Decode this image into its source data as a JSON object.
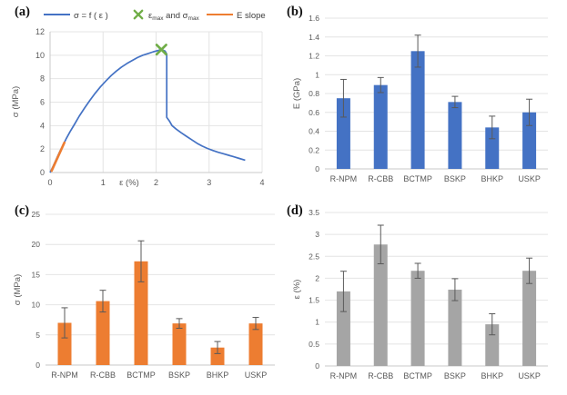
{
  "figure": {
    "background": "#ffffff",
    "panels": {
      "a": {
        "label": "(a)"
      },
      "b": {
        "label": "(b)"
      },
      "c": {
        "label": "(c)"
      },
      "d": {
        "label": "(d)"
      }
    }
  },
  "colors": {
    "blue": "#4472C4",
    "orange": "#ED7D31",
    "green": "#70AD47",
    "gray_bar": "#A5A5A5",
    "error_bar": "#595959",
    "gridline": "#E4E4E4",
    "axis_line": "#C9C9C9",
    "tick_text": "#595959",
    "legend_text": "#404040"
  },
  "chart_data": [
    {
      "id": "a",
      "type": "line",
      "title": "",
      "xlabel": "ε (%)",
      "ylabel": "σ (MPa)",
      "xlim": [
        0,
        4
      ],
      "ylim": [
        0,
        12
      ],
      "xticks": [
        "0",
        "1",
        "2",
        "3",
        "4"
      ],
      "yticks": [
        "0",
        "2",
        "4",
        "6",
        "8",
        "10",
        "12"
      ],
      "grid": "both",
      "legend_position": "top",
      "series": [
        {
          "name": "σ = f ( ε )",
          "type": "line",
          "color": "#4472C4",
          "points": [
            [
              0,
              0
            ],
            [
              0.06,
              0.55
            ],
            [
              0.12,
              1.15
            ],
            [
              0.18,
              1.75
            ],
            [
              0.24,
              2.3
            ],
            [
              0.3,
              2.85
            ],
            [
              0.38,
              3.5
            ],
            [
              0.46,
              4.1
            ],
            [
              0.55,
              4.8
            ],
            [
              0.65,
              5.5
            ],
            [
              0.75,
              6.15
            ],
            [
              0.85,
              6.75
            ],
            [
              0.95,
              7.3
            ],
            [
              1.05,
              7.8
            ],
            [
              1.15,
              8.25
            ],
            [
              1.25,
              8.65
            ],
            [
              1.35,
              9.0
            ],
            [
              1.45,
              9.3
            ],
            [
              1.55,
              9.55
            ],
            [
              1.65,
              9.8
            ],
            [
              1.75,
              10.0
            ],
            [
              1.85,
              10.15
            ],
            [
              1.95,
              10.3
            ],
            [
              2.05,
              10.42
            ],
            [
              2.12,
              10.45
            ],
            [
              2.17,
              10.35
            ],
            [
              2.2,
              10.1
            ],
            [
              2.2,
              4.7
            ],
            [
              2.25,
              4.4
            ],
            [
              2.3,
              4.0
            ],
            [
              2.38,
              3.7
            ],
            [
              2.47,
              3.4
            ],
            [
              2.57,
              3.1
            ],
            [
              2.67,
              2.8
            ],
            [
              2.77,
              2.5
            ],
            [
              2.87,
              2.25
            ],
            [
              2.97,
              2.05
            ],
            [
              3.07,
              1.88
            ],
            [
              3.17,
              1.73
            ],
            [
              3.27,
              1.6
            ],
            [
              3.37,
              1.47
            ],
            [
              3.47,
              1.34
            ],
            [
              3.57,
              1.2
            ],
            [
              3.68,
              1.05
            ]
          ]
        },
        {
          "name": "E slope",
          "type": "line",
          "color": "#ED7D31",
          "points": [
            [
              0.03,
              0.15
            ],
            [
              0.27,
              2.55
            ]
          ]
        },
        {
          "name": "εmax and σmax",
          "type": "scatter",
          "marker": "x",
          "color": "#70AD47",
          "points": [
            [
              2.1,
              10.48
            ]
          ]
        }
      ],
      "legend": [
        {
          "swatch": "line",
          "color": "#4472C4",
          "parts": [
            {
              "text": "σ = f ( ε )"
            }
          ]
        },
        {
          "swatch": "x",
          "color": "#70AD47",
          "parts": [
            {
              "text": "ε"
            },
            {
              "text": "max",
              "sub": true
            },
            {
              "text": " and σ"
            },
            {
              "text": "max",
              "sub": true
            }
          ]
        },
        {
          "swatch": "line",
          "color": "#ED7D31",
          "parts": [
            {
              "text": "E slope"
            }
          ]
        }
      ]
    },
    {
      "id": "b",
      "type": "bar",
      "title": "",
      "xlabel": "",
      "ylabel": "E (GPa)",
      "ylim": [
        0,
        1.6
      ],
      "yticks": [
        "0",
        "0.2",
        "0.4",
        "0.6",
        "0.8",
        "1",
        "1.2",
        "1.4",
        "1.6"
      ],
      "grid": "horizontal",
      "categories": [
        "R-NPM",
        "R-CBB",
        "BCTMP",
        "BSKP",
        "BHKP",
        "USKP"
      ],
      "values": [
        0.75,
        0.89,
        1.25,
        0.71,
        0.44,
        0.6
      ],
      "errors": [
        0.2,
        0.08,
        0.17,
        0.06,
        0.12,
        0.14
      ],
      "bar_color": "#4472C4"
    },
    {
      "id": "c",
      "type": "bar",
      "title": "",
      "xlabel": "",
      "ylabel": "σ (MPa)",
      "ylim": [
        0,
        25
      ],
      "yticks": [
        "0",
        "5",
        "10",
        "15",
        "20",
        "25"
      ],
      "grid": "horizontal",
      "categories": [
        "R-NPM",
        "R-CBB",
        "BCTMP",
        "BSKP",
        "BHKP",
        "USKP"
      ],
      "values": [
        7.0,
        10.6,
        17.2,
        6.9,
        2.9,
        6.9
      ],
      "errors": [
        2.5,
        1.8,
        3.4,
        0.8,
        1.0,
        1.0
      ],
      "bar_color": "#ED7D31"
    },
    {
      "id": "d",
      "type": "bar",
      "title": "",
      "xlabel": "",
      "ylabel": "ε (%)",
      "ylim": [
        0,
        3.5
      ],
      "yticks": [
        "0",
        "0.5",
        "1",
        "1.5",
        "2",
        "2.5",
        "3",
        "3.5"
      ],
      "grid": "horizontal",
      "categories": [
        "R-NPM",
        "R-CBB",
        "BCTMP",
        "BSKP",
        "BHKP",
        "USKP"
      ],
      "values": [
        1.7,
        2.77,
        2.17,
        1.74,
        0.95,
        2.17
      ],
      "errors": [
        0.46,
        0.44,
        0.17,
        0.25,
        0.24,
        0.29
      ],
      "bar_color": "#A5A5A5"
    }
  ]
}
